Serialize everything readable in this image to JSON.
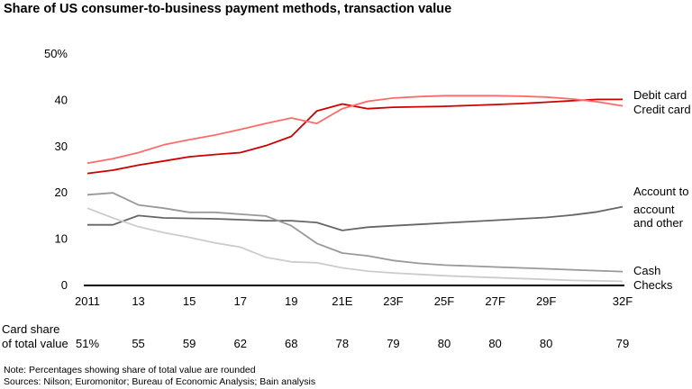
{
  "title": "Share of US consumer-to-business payment methods, transaction value",
  "chart_data": {
    "type": "line",
    "title": "Share of US consumer-to-business payment methods, transaction value",
    "x": [
      2011,
      2012,
      2013,
      2014,
      2015,
      2016,
      2017,
      2018,
      2019,
      2020,
      2021,
      2022,
      2023,
      2024,
      2025,
      2026,
      2027,
      2028,
      2029,
      2030,
      2031,
      2032
    ],
    "x_tick_values": [
      2011,
      2013,
      2015,
      2017,
      2019,
      2021,
      2023,
      2025,
      2027,
      2029,
      2032
    ],
    "x_tick_labels": [
      "2011",
      "13",
      "15",
      "17",
      "19",
      "21E",
      "23F",
      "25F",
      "27F",
      "29F",
      "32F"
    ],
    "y_ticks": [
      "0",
      "10",
      "20",
      "30",
      "40",
      "50%"
    ],
    "ylim": [
      0,
      50
    ],
    "grid": false,
    "series": [
      {
        "name": "Debit card",
        "color": "#cc0000",
        "values": [
          24,
          24.7,
          25.8,
          26.7,
          27.6,
          28.1,
          28.5,
          30,
          32,
          37.5,
          39,
          38,
          38.3,
          38.4,
          38.5,
          38.7,
          38.9,
          39.1,
          39.4,
          39.7,
          40,
          40
        ]
      },
      {
        "name": "Credit card",
        "color": "#ff6b6b",
        "values": [
          26.2,
          27.2,
          28.5,
          30.2,
          31.3,
          32.3,
          33.5,
          34.8,
          36,
          34.8,
          38,
          39.6,
          40.3,
          40.6,
          40.8,
          40.8,
          40.8,
          40.7,
          40.5,
          40.1,
          39.5,
          38.6
        ]
      },
      {
        "name": "Account to account and other",
        "label_lines": [
          "Account to",
          "account",
          "and other"
        ],
        "color": "#666666",
        "values": [
          12.9,
          12.9,
          14.9,
          14.4,
          14.3,
          14.2,
          14.0,
          13.8,
          13.8,
          13.4,
          11.7,
          12.4,
          12.7,
          13.0,
          13.3,
          13.6,
          13.9,
          14.2,
          14.5,
          15.0,
          15.7,
          16.8
        ]
      },
      {
        "name": "Cash",
        "color": "#999999",
        "values": [
          19.4,
          19.8,
          17.2,
          16.5,
          15.6,
          15.6,
          15.2,
          14.8,
          12.7,
          8.9,
          6.8,
          6.2,
          5.2,
          4.6,
          4.2,
          4.0,
          3.8,
          3.6,
          3.4,
          3.2,
          3.0,
          2.8
        ]
      },
      {
        "name": "Checks",
        "color": "#cccccc",
        "values": [
          16.5,
          14.4,
          12.5,
          11.2,
          10.2,
          9,
          8.1,
          5.9,
          4.9,
          4.7,
          3.6,
          2.9,
          2.5,
          2.2,
          1.9,
          1.7,
          1.5,
          1.3,
          1.1,
          0.9,
          0.8,
          0.7
        ]
      }
    ],
    "card_share": {
      "label_lines": [
        "Card share",
        "of total value"
      ],
      "values": [
        "51%",
        "55",
        "59",
        "62",
        "68",
        "78",
        "79",
        "80",
        "80",
        "80",
        "79"
      ]
    }
  },
  "footnotes": [
    "Note: Percentages showing share of total value are rounded",
    "Sources: Nilson; Euromonitor; Bureau of Economic Analysis; Bain analysis"
  ]
}
